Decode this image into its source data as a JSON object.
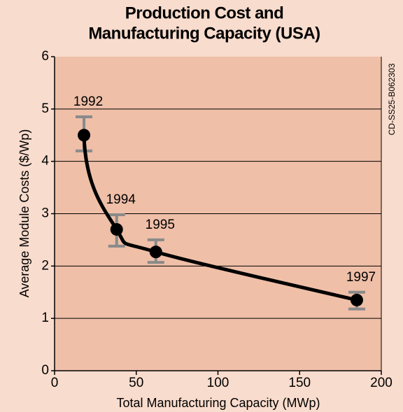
{
  "chart_data": {
    "type": "line",
    "title": [
      "Production Cost and",
      "Manufacturing Capacity (USA)"
    ],
    "side_label": "CD-SS25-B062303",
    "xlabel": "Total Manufacturing Capacity (MWp)",
    "ylabel": "Average Module Costs ($/Wp)",
    "x": [
      18,
      38,
      62,
      185
    ],
    "values": [
      4.5,
      2.7,
      2.27,
      1.35
    ],
    "error_low": [
      4.2,
      2.38,
      2.07,
      1.18
    ],
    "error_high": [
      4.85,
      2.98,
      2.5,
      1.5
    ],
    "point_labels": [
      "1992",
      "1994",
      "1995",
      "1997"
    ],
    "color": "#000000",
    "error_color": "#8a8a8a",
    "xlim": [
      0,
      200
    ],
    "xticks": [
      0,
      50,
      100,
      150,
      200
    ],
    "ylim": [
      0,
      6
    ],
    "yticks": [
      0,
      1,
      2,
      3,
      4,
      5,
      6
    ],
    "grid": true
  }
}
